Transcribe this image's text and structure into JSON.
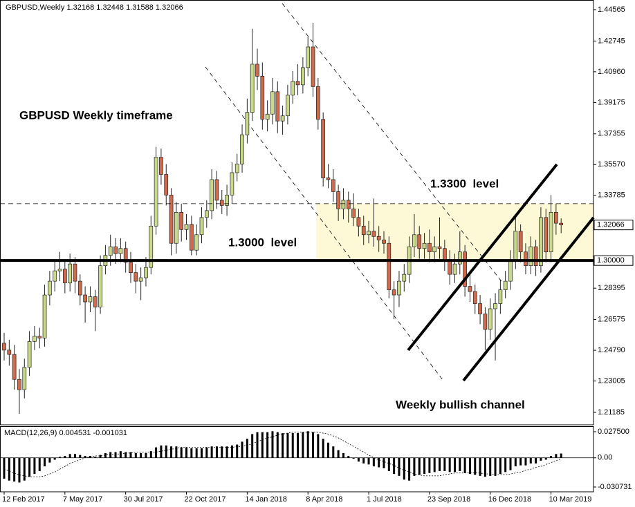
{
  "chart_data": [
    {
      "type": "candlestick",
      "title": "GBPUSD,Weekly",
      "categories": [
        "12 Feb 2017",
        null,
        null,
        null,
        null,
        null,
        null,
        null,
        null,
        null,
        null,
        null,
        "7 May 2017",
        null,
        null,
        null,
        null,
        null,
        null,
        null,
        null,
        null,
        null,
        null,
        "30 Jul 2017",
        null,
        null,
        null,
        null,
        null,
        null,
        null,
        null,
        null,
        null,
        null,
        "22 Oct 2017",
        null,
        null,
        null,
        null,
        null,
        null,
        null,
        null,
        null,
        null,
        null,
        "14 Jan 2018",
        null,
        null,
        null,
        null,
        null,
        null,
        null,
        null,
        null,
        null,
        null,
        "8 Apr 2018",
        null,
        null,
        null,
        null,
        null,
        null,
        null,
        null,
        null,
        null,
        null,
        "1 Jul 2018",
        null,
        null,
        null,
        null,
        null,
        null,
        null,
        null,
        null,
        null,
        null,
        "23 Sep 2018",
        null,
        null,
        null,
        null,
        null,
        null,
        null,
        null,
        null,
        null,
        null,
        "16 Dec 2018",
        null,
        null,
        null,
        null,
        null,
        null,
        null,
        null,
        null,
        null,
        null,
        "10 Mar 2019",
        null,
        null
      ],
      "open": [
        1.252,
        1.248,
        1.2455,
        1.231,
        1.225,
        1.238,
        1.253,
        1.256,
        1.255,
        1.28,
        1.288,
        1.294,
        1.295,
        1.287,
        1.298,
        1.288,
        1.28,
        1.276,
        1.279,
        1.273,
        1.297,
        1.303,
        1.308,
        1.304,
        1.307,
        1.299,
        1.293,
        1.288,
        1.29,
        1.296,
        1.32,
        1.36,
        1.35,
        1.338,
        1.31,
        1.328,
        1.318,
        1.321,
        1.306,
        1.315,
        1.325,
        1.329,
        1.347,
        1.335,
        1.332,
        1.338,
        1.351,
        1.356,
        1.373,
        1.386,
        1.414,
        1.407,
        1.382,
        1.385,
        1.398,
        1.381,
        1.384,
        1.396,
        1.404,
        1.402,
        1.412,
        1.424,
        1.401,
        1.382,
        1.348,
        1.347,
        1.34,
        1.33,
        1.335,
        1.33,
        1.325,
        1.32,
        1.315,
        1.317,
        1.314,
        1.312,
        1.31,
        1.283,
        1.28,
        1.288,
        1.292,
        1.308,
        1.315,
        1.307,
        1.31,
        1.305,
        1.308,
        1.307,
        1.3,
        1.292,
        1.298,
        1.305,
        1.285,
        1.282,
        1.275,
        1.269,
        1.26,
        1.272,
        1.275,
        1.283,
        1.288,
        1.3,
        1.317,
        1.305,
        1.297,
        1.308,
        1.297,
        1.325,
        1.305,
        1.328,
        1.32168
      ],
      "high": [
        1.258,
        1.254,
        1.251,
        1.237,
        1.243,
        1.259,
        1.262,
        1.261,
        1.286,
        1.294,
        1.3,
        1.305,
        1.3,
        1.304,
        1.302,
        1.292,
        1.285,
        1.285,
        1.283,
        1.303,
        1.309,
        1.315,
        1.313,
        1.313,
        1.311,
        1.305,
        1.298,
        1.296,
        1.302,
        1.326,
        1.366,
        1.365,
        1.356,
        1.342,
        1.334,
        1.333,
        1.327,
        1.326,
        1.321,
        1.331,
        1.335,
        1.353,
        1.352,
        1.341,
        1.344,
        1.357,
        1.362,
        1.379,
        1.394,
        1.4345,
        1.423,
        1.415,
        1.393,
        1.406,
        1.404,
        1.39,
        1.402,
        1.41,
        1.414,
        1.418,
        1.43,
        1.438,
        1.406,
        1.386,
        1.356,
        1.353,
        1.344,
        1.342,
        1.34,
        1.339,
        1.33,
        1.326,
        1.323,
        1.336,
        1.32,
        1.317,
        1.314,
        1.288,
        1.294,
        1.298,
        1.314,
        1.327,
        1.32,
        1.316,
        1.318,
        1.314,
        1.325,
        1.312,
        1.306,
        1.304,
        1.317,
        1.309,
        1.292,
        1.286,
        1.28,
        1.273,
        1.278,
        1.281,
        1.289,
        1.294,
        1.306,
        1.325,
        1.321,
        1.31,
        1.314,
        1.312,
        1.331,
        1.33,
        1.338,
        1.333,
        1.32448
      ],
      "low": [
        1.242,
        1.239,
        1.225,
        1.211,
        1.22,
        1.233,
        1.248,
        1.249,
        1.25,
        1.274,
        1.282,
        1.288,
        1.281,
        1.282,
        1.281,
        1.274,
        1.264,
        1.27,
        1.259,
        1.269,
        1.292,
        1.297,
        1.298,
        1.299,
        1.293,
        1.287,
        1.281,
        1.277,
        1.285,
        1.292,
        1.315,
        1.344,
        1.332,
        1.303,
        1.304,
        1.311,
        1.312,
        1.303,
        1.303,
        1.31,
        1.319,
        1.324,
        1.33,
        1.327,
        1.326,
        1.333,
        1.346,
        1.351,
        1.368,
        1.381,
        1.399,
        1.376,
        1.375,
        1.379,
        1.374,
        1.373,
        1.379,
        1.391,
        1.396,
        1.397,
        1.407,
        1.395,
        1.376,
        1.343,
        1.342,
        1.334,
        1.323,
        1.324,
        1.322,
        1.32,
        1.314,
        1.309,
        1.31,
        1.308,
        1.305,
        1.304,
        1.278,
        1.266,
        1.273,
        1.282,
        1.287,
        1.302,
        1.301,
        1.301,
        1.299,
        1.299,
        1.301,
        1.294,
        1.286,
        1.287,
        1.292,
        1.279,
        1.276,
        1.269,
        1.263,
        1.248,
        1.254,
        1.242,
        1.269,
        1.278,
        1.283,
        1.295,
        1.299,
        1.292,
        1.292,
        1.291,
        1.293,
        1.299,
        1.299,
        1.315,
        1.31588
      ],
      "close": [
        1.248,
        1.2455,
        1.231,
        1.225,
        1.238,
        1.253,
        1.256,
        1.255,
        1.28,
        1.288,
        1.294,
        1.295,
        1.287,
        1.298,
        1.288,
        1.28,
        1.276,
        1.279,
        1.273,
        1.297,
        1.303,
        1.308,
        1.304,
        1.307,
        1.299,
        1.293,
        1.288,
        1.29,
        1.296,
        1.32,
        1.36,
        1.35,
        1.338,
        1.31,
        1.328,
        1.318,
        1.321,
        1.306,
        1.315,
        1.325,
        1.329,
        1.347,
        1.335,
        1.332,
        1.338,
        1.351,
        1.356,
        1.373,
        1.386,
        1.414,
        1.407,
        1.382,
        1.385,
        1.398,
        1.381,
        1.384,
        1.396,
        1.404,
        1.402,
        1.412,
        1.424,
        1.401,
        1.382,
        1.348,
        1.347,
        1.34,
        1.33,
        1.335,
        1.33,
        1.325,
        1.32,
        1.315,
        1.317,
        1.314,
        1.312,
        1.31,
        1.283,
        1.28,
        1.288,
        1.292,
        1.308,
        1.315,
        1.307,
        1.31,
        1.305,
        1.308,
        1.307,
        1.3,
        1.292,
        1.298,
        1.305,
        1.285,
        1.282,
        1.275,
        1.269,
        1.26,
        1.272,
        1.275,
        1.283,
        1.288,
        1.3,
        1.317,
        1.305,
        1.297,
        1.308,
        1.297,
        1.325,
        1.305,
        1.328,
        1.32168,
        1.32066
      ],
      "colors": {
        "up": "#c9d98a",
        "down": "#cf6a4d",
        "outline": "#222222"
      },
      "ylim": [
        1.20463,
        1.45126
      ],
      "yticks": [
        1.44565,
        1.42745,
        {
          "value": 1.4096,
          "label": "1.40960"
        },
        1.39175,
        1.37355,
        {
          "value": 1.3557,
          "label": "1.35570"
        },
        1.33785,
        1.28395,
        1.26575,
        {
          "value": 1.2479,
          "label": "1.24790"
        },
        1.23005,
        1.21185
      ],
      "hlines": [
        {
          "value": 1.333,
          "style": "dashed"
        },
        {
          "value": 1.3,
          "label": "1.30000",
          "style": "solid"
        }
      ],
      "annotations": [
        "GBPUSD Weekly timeframe",
        "1.3300  level",
        "1.3000  level",
        "Weekly bullish channel"
      ]
    },
    {
      "type": "macd",
      "title": "MACD(12,26,9)",
      "main": [
        -0.022,
        -0.024,
        -0.025,
        -0.026,
        -0.024,
        -0.02,
        -0.017,
        -0.014,
        -0.009,
        -0.005,
        -0.002,
        0.001,
        0.002,
        0.004,
        0.004,
        0.003,
        0.002,
        0.002,
        0.001,
        0.003,
        0.005,
        0.006,
        0.006,
        0.007,
        0.006,
        0.006,
        0.005,
        0.005,
        0.005,
        0.007,
        0.011,
        0.013,
        0.013,
        0.012,
        0.012,
        0.011,
        0.011,
        0.01,
        0.01,
        0.01,
        0.011,
        0.012,
        0.012,
        0.012,
        0.012,
        0.013,
        0.014,
        0.017,
        0.02,
        0.025,
        0.027,
        0.027,
        0.027,
        0.028,
        0.027,
        0.026,
        0.026,
        0.026,
        0.026,
        0.027,
        0.028,
        0.027,
        0.025,
        0.02,
        0.016,
        0.012,
        0.008,
        0.005,
        0.002,
        -0.001,
        -0.004,
        -0.006,
        -0.007,
        -0.009,
        -0.01,
        -0.011,
        -0.014,
        -0.017,
        -0.019,
        -0.023,
        -0.024,
        -0.019,
        -0.018,
        -0.017,
        -0.016,
        -0.015,
        -0.014,
        -0.014,
        -0.015,
        -0.015,
        -0.014,
        -0.016,
        -0.017,
        -0.018,
        -0.019,
        -0.02,
        -0.019,
        -0.019,
        -0.017,
        -0.015,
        -0.013,
        -0.009,
        -0.008,
        -0.008,
        -0.006,
        -0.006,
        -0.003,
        -0.002,
        0.002,
        0.004,
        0.004531
      ],
      "signal": [
        -0.012,
        -0.014,
        -0.016,
        -0.018,
        -0.019,
        -0.02,
        -0.02,
        -0.02,
        -0.019,
        -0.017,
        -0.015,
        -0.012,
        -0.009,
        -0.006,
        -0.004,
        -0.002,
        0,
        0.001,
        0.002,
        0.002,
        0.003,
        0.003,
        0.004,
        0.004,
        0.005,
        0.005,
        0.006,
        0.006,
        0.006,
        0.006,
        0.006,
        0.007,
        0.008,
        0.009,
        0.01,
        0.011,
        0.011,
        0.011,
        0.011,
        0.011,
        0.011,
        0.011,
        0.011,
        0.011,
        0.011,
        0.011,
        0.012,
        0.012,
        0.013,
        0.015,
        0.017,
        0.019,
        0.021,
        0.022,
        0.024,
        0.025,
        0.026,
        0.027,
        0.027,
        0.027,
        0.027,
        0.027,
        0.027,
        0.026,
        0.025,
        0.023,
        0.021,
        0.018,
        0.015,
        0.012,
        0.009,
        0.006,
        0.003,
        0,
        -0.002,
        -0.004,
        -0.006,
        -0.008,
        -0.011,
        -0.013,
        -0.015,
        -0.017,
        -0.018,
        -0.019,
        -0.019,
        -0.019,
        -0.019,
        -0.018,
        -0.017,
        -0.016,
        -0.016,
        -0.016,
        -0.016,
        -0.016,
        -0.016,
        -0.017,
        -0.017,
        -0.018,
        -0.018,
        -0.018,
        -0.017,
        -0.016,
        -0.015,
        -0.013,
        -0.012,
        -0.01,
        -0.009,
        -0.007,
        -0.005,
        -0.003,
        -0.001031
      ],
      "ylim": [
        -0.03583,
        0.03332
      ],
      "yticks": [
        {
          "value": 0.0275,
          "label": "0.027500"
        },
        {
          "value": 0,
          "label": "0.00"
        },
        -0.030731
      ]
    }
  ]
}
